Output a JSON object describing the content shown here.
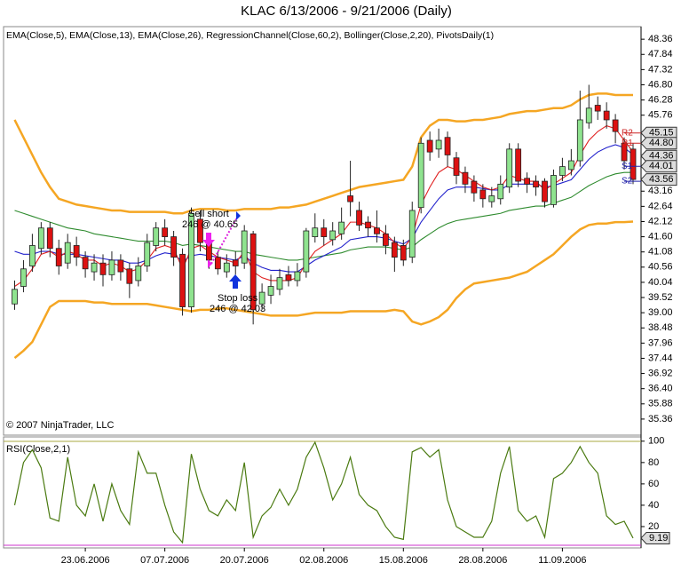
{
  "chart_data": [
    {
      "type": "candlestick",
      "title": "KLAC  6/13/2006 - 9/21/2006 (Daily)",
      "indicators": "EMA(Close,5), EMA(Close,13), EMA(Close,26), RegressionChannel(Close,60,2), Bollinger(Close,2,20), PivotsDaily(1)",
      "copyright": "© 2007 NinjaTrader, LLC",
      "categories": [
        null,
        null,
        null,
        null,
        null,
        null,
        null,
        null,
        "23.06.2006",
        null,
        null,
        null,
        null,
        null,
        null,
        null,
        null,
        "07.07.2006",
        null,
        null,
        null,
        null,
        null,
        null,
        null,
        null,
        "20.07.2006",
        null,
        null,
        null,
        null,
        null,
        null,
        null,
        null,
        "02.08.2006",
        null,
        null,
        null,
        null,
        null,
        null,
        null,
        null,
        "15.08.2006",
        null,
        null,
        null,
        null,
        null,
        null,
        null,
        null,
        "28.08.2006",
        null,
        null,
        null,
        null,
        null,
        null,
        null,
        null,
        "11.09.2006",
        null,
        null,
        null,
        null,
        null,
        null,
        null,
        null
      ],
      "open": [
        39.3,
        39.9,
        40.6,
        41.2,
        41.9,
        41.2,
        40.7,
        41.3,
        40.9,
        40.4,
        40.7,
        40.3,
        40.8,
        40.5,
        40.1,
        40.6,
        41.3,
        41.9,
        41.6,
        41.0,
        39.2,
        42.2,
        41.4,
        40.9,
        40.4,
        40.8,
        40.7,
        41.7,
        39.3,
        39.6,
        39.8,
        40.3,
        40.1,
        40.4,
        41.6,
        41.9,
        41.5,
        41.7,
        43.0,
        42.5,
        42.1,
        41.9,
        41.7,
        41.4,
        41.3,
        40.9,
        42.6,
        44.9,
        44.6,
        45.0,
        44.3,
        43.8,
        43.5,
        43.2,
        42.8,
        42.9,
        43.3,
        44.6,
        43.6,
        43.5,
        43.5,
        42.7,
        43.7,
        43.9,
        44.2,
        45.5,
        46.1,
        45.9,
        45.6,
        44.8,
        44.6
      ],
      "high": [
        40.1,
        40.8,
        41.7,
        42.1,
        42.1,
        41.5,
        41.7,
        41.6,
        41.1,
        41.0,
        41.0,
        41.1,
        41.0,
        40.7,
        40.9,
        41.7,
        42.1,
        42.2,
        41.8,
        41.2,
        42.6,
        42.5,
        41.6,
        41.1,
        41.0,
        41.1,
        42.0,
        41.8,
        40.0,
        40.3,
        40.5,
        40.6,
        40.7,
        41.9,
        42.4,
        42.2,
        42.1,
        42.6,
        44.2,
        42.8,
        42.3,
        42.5,
        42.0,
        41.6,
        41.5,
        42.8,
        45.0,
        45.2,
        45.3,
        45.2,
        44.5,
        44.0,
        43.7,
        43.4,
        43.3,
        43.7,
        44.8,
        44.8,
        43.8,
        43.7,
        43.6,
        43.9,
        44.3,
        44.6,
        46.6,
        46.8,
        46.4,
        46.2,
        45.8,
        45.0,
        44.8
      ],
      "low": [
        39.1,
        39.7,
        40.4,
        41.0,
        40.9,
        40.3,
        40.5,
        40.6,
        40.2,
        40.1,
        39.9,
        40.1,
        40.1,
        39.5,
        39.9,
        40.4,
        41.1,
        41.3,
        40.6,
        38.9,
        39.0,
        41.1,
        40.5,
        40.3,
        40.2,
        40.3,
        40.5,
        38.6,
        39.1,
        39.3,
        39.6,
        39.9,
        39.9,
        40.2,
        41.4,
        41.3,
        41.3,
        41.5,
        42.3,
        41.8,
        41.6,
        41.4,
        41.0,
        40.4,
        40.6,
        40.7,
        42.4,
        44.2,
        44.3,
        44.0,
        43.4,
        43.1,
        42.8,
        42.6,
        42.6,
        42.7,
        43.1,
        43.3,
        43.1,
        43.0,
        42.6,
        42.6,
        43.5,
        43.7,
        44.0,
        45.3,
        45.6,
        45.3,
        44.8,
        43.9,
        43.4
      ],
      "close": [
        39.8,
        40.5,
        41.3,
        41.9,
        41.2,
        40.6,
        41.4,
        40.9,
        40.5,
        40.7,
        40.3,
        40.8,
        40.4,
        40.0,
        40.6,
        41.4,
        41.9,
        41.6,
        40.9,
        39.2,
        42.4,
        41.4,
        40.8,
        40.5,
        40.7,
        40.6,
        41.8,
        39.1,
        39.7,
        39.9,
        40.2,
        40.1,
        40.4,
        41.8,
        41.9,
        41.6,
        41.8,
        42.1,
        42.8,
        42.0,
        41.9,
        41.7,
        41.3,
        40.9,
        40.8,
        42.5,
        44.8,
        44.5,
        44.9,
        44.4,
        43.7,
        43.4,
        43.1,
        42.9,
        43.0,
        43.4,
        44.6,
        43.5,
        43.4,
        43.3,
        42.8,
        43.7,
        44.0,
        44.2,
        45.6,
        46.0,
        45.9,
        45.6,
        45.2,
        44.2,
        43.56
      ],
      "up_color": "#8fe38f",
      "down_color": "#dd1111",
      "series": [
        {
          "name": "Bollinger(Close,2,20)",
          "color": "#f5a623",
          "values": [
            45.6,
            45.0,
            44.4,
            43.8,
            43.3,
            42.9,
            42.8,
            42.7,
            42.65,
            42.6,
            42.55,
            42.5,
            42.5,
            42.45,
            42.45,
            42.45,
            42.45,
            42.45,
            42.4,
            42.4,
            42.5,
            42.55,
            42.55,
            42.55,
            42.5,
            42.5,
            42.55,
            42.55,
            42.55,
            42.55,
            42.6,
            42.6,
            42.65,
            42.7,
            42.8,
            42.9,
            43.0,
            43.1,
            43.2,
            43.3,
            43.35,
            43.4,
            43.45,
            43.5,
            43.55,
            44.0,
            45.0,
            45.4,
            45.6,
            45.6,
            45.55,
            45.55,
            45.6,
            45.6,
            45.65,
            45.7,
            45.8,
            45.85,
            45.9,
            45.9,
            45.95,
            46.0,
            46.0,
            46.1,
            46.3,
            46.45,
            46.5,
            46.5,
            46.45,
            46.45,
            46.45
          ]
        },
        {
          "name": "Bollinger(Close,2,20)",
          "color": "#f5a623",
          "values": [
            37.45,
            37.7,
            38.0,
            38.6,
            39.2,
            39.4,
            39.4,
            39.4,
            39.4,
            39.35,
            39.35,
            39.3,
            39.3,
            39.3,
            39.3,
            39.3,
            39.25,
            39.2,
            39.15,
            39.1,
            39.05,
            39.1,
            39.1,
            39.15,
            39.15,
            39.1,
            39.05,
            39.0,
            38.95,
            38.9,
            38.9,
            38.9,
            38.9,
            38.95,
            39.0,
            39.0,
            39.0,
            39.0,
            39.05,
            39.05,
            39.05,
            39.05,
            39.05,
            39.1,
            39.05,
            38.7,
            38.6,
            38.7,
            38.85,
            39.1,
            39.5,
            39.8,
            40.0,
            40.05,
            40.1,
            40.15,
            40.2,
            40.3,
            40.4,
            40.6,
            40.8,
            41.0,
            41.3,
            41.6,
            41.85,
            42.0,
            42.05,
            42.05,
            42.1,
            42.1,
            42.12
          ]
        },
        {
          "name": "EMA(Close,26)",
          "color": "#2e8b2e",
          "values": [
            42.5,
            42.4,
            42.3,
            42.2,
            42.1,
            42.0,
            41.9,
            41.85,
            41.8,
            41.7,
            41.65,
            41.6,
            41.55,
            41.5,
            41.45,
            41.45,
            41.45,
            41.45,
            41.4,
            41.3,
            41.35,
            41.3,
            41.25,
            41.2,
            41.15,
            41.1,
            41.1,
            41.0,
            40.95,
            40.9,
            40.85,
            40.8,
            40.8,
            40.85,
            40.9,
            40.95,
            41.0,
            41.05,
            41.15,
            41.2,
            41.25,
            41.25,
            41.25,
            41.2,
            41.15,
            41.25,
            41.5,
            41.7,
            41.9,
            42.05,
            42.15,
            42.2,
            42.25,
            42.3,
            42.35,
            42.4,
            42.5,
            42.55,
            42.6,
            42.65,
            42.65,
            42.75,
            42.85,
            42.95,
            43.15,
            43.35,
            43.5,
            43.65,
            43.75,
            43.8,
            43.8
          ]
        },
        {
          "name": "EMA(Close,13)",
          "color": "#2222cc",
          "values": [
            41.1,
            41.0,
            41.0,
            41.1,
            41.1,
            41.0,
            41.0,
            41.0,
            40.95,
            40.9,
            40.85,
            40.8,
            40.8,
            40.7,
            40.7,
            40.8,
            40.95,
            41.05,
            41.0,
            40.75,
            40.95,
            41.0,
            40.95,
            40.9,
            40.85,
            40.8,
            40.95,
            40.7,
            40.55,
            40.45,
            40.45,
            40.4,
            40.4,
            40.6,
            40.8,
            40.95,
            41.1,
            41.25,
            41.5,
            41.55,
            41.6,
            41.6,
            41.55,
            41.45,
            41.35,
            41.55,
            42.1,
            42.5,
            42.9,
            43.2,
            43.3,
            43.3,
            43.3,
            43.25,
            43.2,
            43.2,
            43.4,
            43.4,
            43.4,
            43.4,
            43.3,
            43.35,
            43.45,
            43.55,
            43.9,
            44.25,
            44.5,
            44.65,
            44.75,
            44.65,
            44.4
          ]
        },
        {
          "name": "EMA(Close,5)",
          "color": "#e02020",
          "values": [
            39.9,
            40.1,
            40.5,
            41.0,
            41.1,
            40.9,
            41.1,
            41.0,
            40.8,
            40.8,
            40.6,
            40.7,
            40.6,
            40.4,
            40.5,
            40.8,
            41.2,
            41.3,
            41.2,
            40.5,
            41.2,
            41.3,
            41.1,
            40.9,
            40.8,
            40.7,
            41.1,
            40.4,
            40.2,
            40.1,
            40.1,
            40.1,
            40.2,
            40.7,
            41.1,
            41.3,
            41.5,
            41.7,
            42.1,
            42.1,
            42.0,
            41.9,
            41.7,
            41.4,
            41.2,
            41.6,
            42.7,
            43.3,
            43.8,
            44.0,
            43.9,
            43.7,
            43.5,
            43.3,
            43.2,
            43.3,
            43.7,
            43.6,
            43.5,
            43.5,
            43.2,
            43.4,
            43.6,
            43.8,
            44.4,
            44.9,
            45.2,
            45.4,
            45.3,
            44.9,
            44.5
          ]
        }
      ],
      "pivots": [
        {
          "name": "R2",
          "value": 45.15,
          "color": "#cc2222"
        },
        {
          "name": "R1",
          "value": 44.8,
          "color": "#cc2222"
        },
        {
          "name": "S1",
          "value": 44.01,
          "color": "#2222aa"
        },
        {
          "name": "S2",
          "value": 43.5,
          "color": "#2222aa"
        }
      ],
      "price_boxes": [
        45.15,
        {
          "value": 44.8,
          "label": "44.80"
        },
        44.36,
        44.01
      ],
      "annotations": [
        "Sell short",
        "246 @ 40.65",
        "Stop loss",
        "246 @ 42.03"
      ],
      "ylim": [
        34.81,
        48.79
      ],
      "yticks": [
        35.36,
        35.88,
        {
          "value": 36.4,
          "label": "36.40"
        },
        36.92,
        37.44,
        37.96,
        38.48,
        {
          "value": 39.0,
          "label": "39.00"
        },
        39.52,
        40.04,
        40.56,
        41.08,
        {
          "value": 41.6,
          "label": "41.60"
        },
        42.12,
        42.64,
        43.16,
        45.76,
        46.28,
        {
          "value": 46.8,
          "label": "46.80"
        },
        47.32,
        47.84,
        48.36
      ]
    },
    {
      "type": "line",
      "title": "RSI(Close,2,1)",
      "color": "#4a7a10",
      "values": [
        40,
        80,
        92,
        75,
        28,
        25,
        85,
        40,
        30,
        60,
        25,
        60,
        35,
        22,
        90,
        70,
        70,
        40,
        15,
        5,
        88,
        55,
        35,
        30,
        45,
        35,
        80,
        10,
        30,
        38,
        55,
        40,
        55,
        85,
        99,
        75,
        45,
        60,
        85,
        50,
        40,
        35,
        20,
        10,
        8,
        90,
        94,
        85,
        92,
        45,
        20,
        15,
        10,
        10,
        25,
        70,
        95,
        35,
        25,
        30,
        10,
        65,
        70,
        80,
        95,
        80,
        70,
        30,
        22,
        25,
        9.19
      ],
      "ylim": [
        0,
        104
      ],
      "yticks": [
        20,
        40,
        60,
        80,
        100
      ]
    }
  ]
}
